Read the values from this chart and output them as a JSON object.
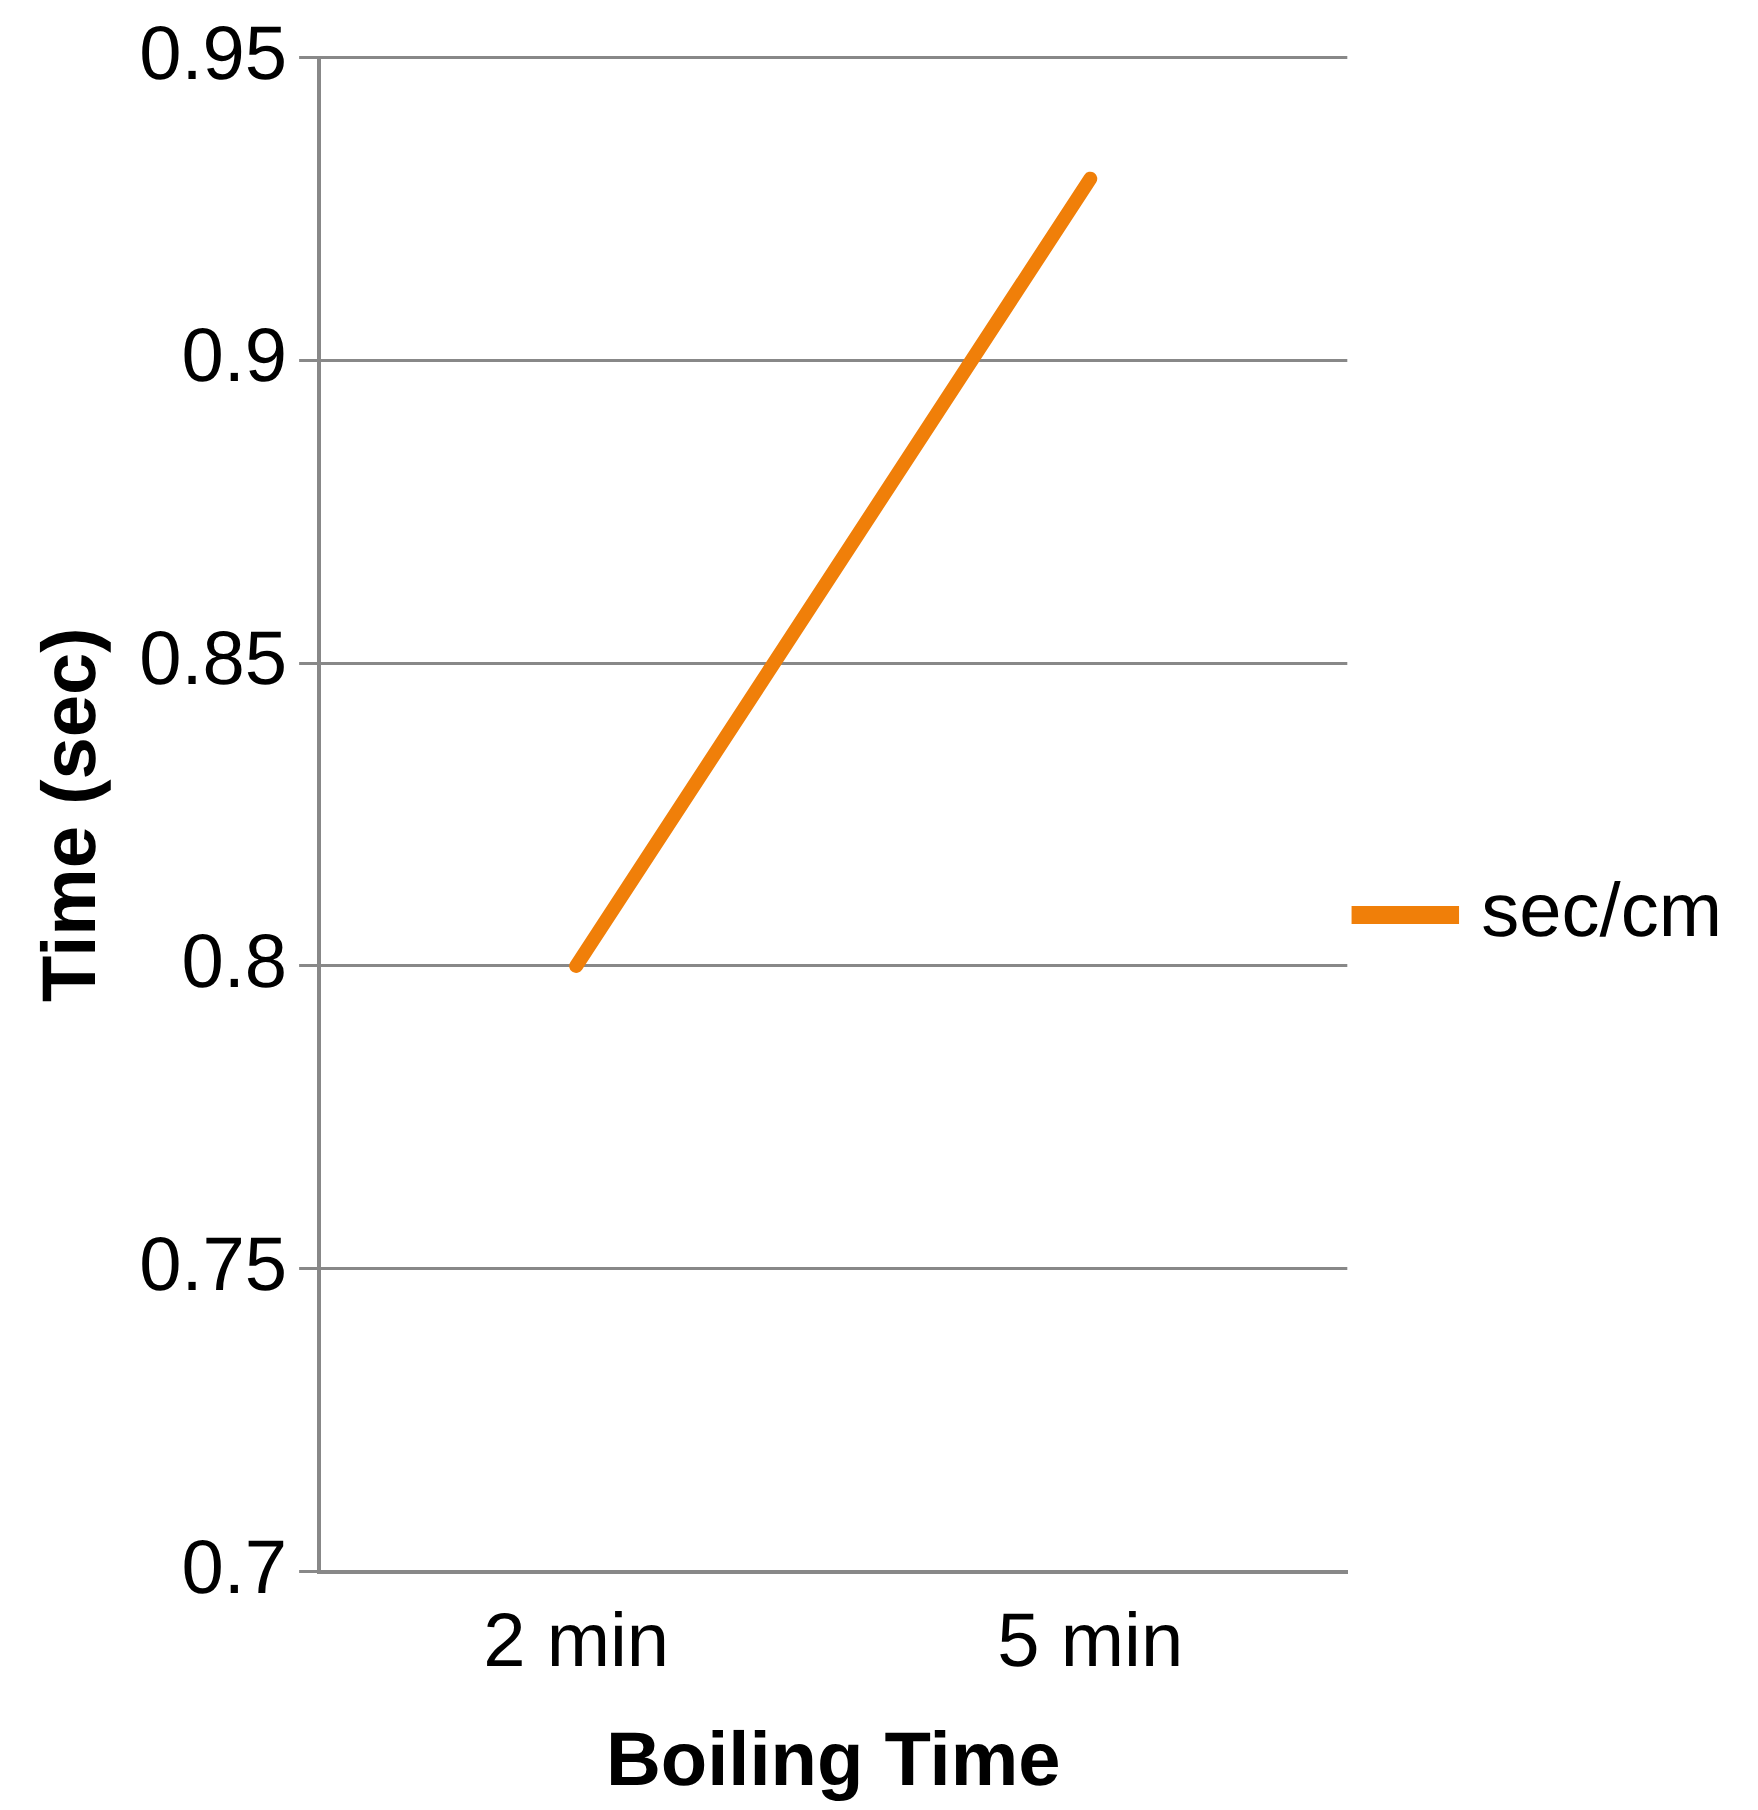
{
  "chart_data": {
    "type": "line",
    "xlabel": "Boiling Time",
    "ylabel": "Time (sec)",
    "categories": [
      "2 min",
      "5 min"
    ],
    "series": [
      {
        "name": "sec/cm",
        "color": "#f07f09",
        "values": [
          0.8,
          0.93
        ]
      }
    ],
    "ylim": [
      0.7,
      0.95
    ],
    "yticks": [
      0.7,
      0.75,
      0.8,
      0.85,
      0.9,
      0.95
    ],
    "grid": "y",
    "legend": "right",
    "marker": "none",
    "line_style": "solid"
  }
}
